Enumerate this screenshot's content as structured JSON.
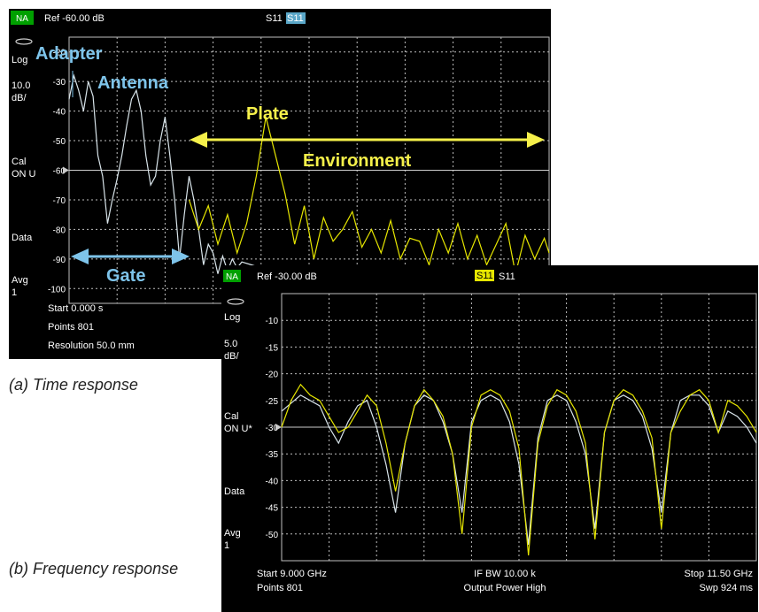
{
  "captions": {
    "a": "(a) Time response",
    "b": "(b) Frequency response"
  },
  "panel_a": {
    "na_badge": "NA",
    "ref_label": "Ref -60.00 dB",
    "trace_label_1": "S11",
    "trace_label_2": "S11",
    "side": {
      "scale_type": "Log",
      "scale_value": "10.0",
      "scale_unit": "dB/",
      "cal_1": "Cal",
      "cal_2": "ON U",
      "data": "Data",
      "avg_1": "Avg",
      "avg_2": "1"
    },
    "footer": {
      "start": "Start 0.000 s",
      "points": "Points 801",
      "resolution": "Resolution 50.0 mm"
    },
    "annotations": {
      "adapter": "Adapter",
      "antenna": "Antenna",
      "plate": "Plate",
      "environment": "Environment",
      "gate": "Gate"
    }
  },
  "panel_b": {
    "na_badge": "NA",
    "ref_label": "Ref -30.00 dB",
    "trace_label_1": "S11",
    "trace_label_2": "S11",
    "side": {
      "scale_type": "Log",
      "scale_value": "5.0",
      "scale_unit": "dB/",
      "cal_1": "Cal",
      "cal_2": "ON U*",
      "data": "Data",
      "avg_1": "Avg",
      "avg_2": "1"
    },
    "footer": {
      "start": "Start 9.000 GHz",
      "points": "Points 801",
      "ifbw": "IF BW 10.00 k",
      "power": "Output Power High",
      "stop": "Stop 11.50 GHz",
      "swp": "Swp 924 ms"
    }
  },
  "colors": {
    "screen_bg": "#000000",
    "grid": "#bfbfbf",
    "trace_yellow": "#e6e600",
    "trace_white": "#d8e4ea",
    "annotation_blue": "#7ec4ea",
    "annotation_yellow": "#f5f04a",
    "na_badge_bg": "#00a000"
  },
  "chart_data": [
    {
      "type": "line",
      "x_range": [
        0,
        10
      ],
      "ylim": [
        -105,
        -15
      ],
      "y_ticks": [
        -20,
        -30,
        -40,
        -50,
        -60,
        -70,
        -80,
        -90,
        -100
      ],
      "ref_level": -60,
      "series": [
        {
          "color": "white",
          "x": [
            0,
            0.1,
            0.2,
            0.3,
            0.4,
            0.5,
            0.6,
            0.7,
            0.8,
            0.9,
            1.0,
            1.1,
            1.2,
            1.3,
            1.4,
            1.5,
            1.6,
            1.7,
            1.8,
            1.9,
            2.0,
            2.1,
            2.2,
            2.3,
            2.4,
            2.5,
            2.6,
            2.7,
            2.8,
            2.9,
            3.0,
            3.1,
            3.2,
            3.3,
            3.4,
            3.5,
            3.6,
            3.8,
            4.0,
            4.5,
            5.0,
            5.5,
            6.0,
            6.5,
            7.0,
            7.5,
            8.0,
            8.5,
            9.0,
            9.5,
            10.0
          ],
          "y": [
            -36,
            -28,
            -33,
            -40,
            -30,
            -35,
            -55,
            -62,
            -78,
            -70,
            -63,
            -55,
            -45,
            -36,
            -33,
            -40,
            -55,
            -65,
            -62,
            -50,
            -42,
            -55,
            -70,
            -90,
            -75,
            -62,
            -70,
            -80,
            -92,
            -85,
            -88,
            -95,
            -89,
            -94,
            -90,
            -93,
            -91,
            -92,
            -93,
            -94,
            -95,
            -96,
            -96,
            -97,
            -97,
            -98,
            -98,
            -98,
            -99,
            -99,
            -99
          ]
        },
        {
          "color": "yellow",
          "x": [
            2.5,
            2.7,
            2.9,
            3.1,
            3.3,
            3.5,
            3.7,
            3.9,
            4.1,
            4.3,
            4.5,
            4.7,
            4.9,
            5.1,
            5.3,
            5.5,
            5.7,
            5.9,
            6.1,
            6.3,
            6.5,
            6.7,
            6.9,
            7.1,
            7.3,
            7.5,
            7.7,
            7.9,
            8.1,
            8.3,
            8.5,
            8.7,
            8.9,
            9.1,
            9.3,
            9.5,
            9.7,
            9.9,
            10.0
          ],
          "y": [
            -70,
            -80,
            -72,
            -85,
            -75,
            -88,
            -78,
            -62,
            -42,
            -55,
            -68,
            -85,
            -72,
            -90,
            -76,
            -84,
            -80,
            -74,
            -86,
            -80,
            -88,
            -77,
            -90,
            -83,
            -84,
            -92,
            -80,
            -88,
            -78,
            -90,
            -82,
            -92,
            -85,
            -78,
            -95,
            -82,
            -90,
            -83,
            -88
          ]
        }
      ]
    },
    {
      "type": "line",
      "x_range": [
        9.0,
        11.5
      ],
      "ylim": [
        -55,
        -5
      ],
      "y_ticks": [
        -10,
        -15,
        -20,
        -25,
        -30,
        -35,
        -40,
        -45,
        -50
      ],
      "ref_level": -30,
      "series": [
        {
          "color": "white",
          "x": [
            9.0,
            9.1,
            9.2,
            9.25,
            9.3,
            9.35,
            9.4,
            9.45,
            9.5,
            9.55,
            9.6,
            9.65,
            9.7,
            9.75,
            9.8,
            9.85,
            9.9,
            9.95,
            10.0,
            10.05,
            10.1,
            10.15,
            10.2,
            10.25,
            10.3,
            10.35,
            10.4,
            10.45,
            10.5,
            10.55,
            10.6,
            10.65,
            10.7,
            10.75,
            10.8,
            10.85,
            10.9,
            10.95,
            11.0,
            11.05,
            11.1,
            11.15,
            11.2,
            11.25,
            11.3,
            11.35,
            11.4,
            11.45,
            11.5
          ],
          "y": [
            -27,
            -24,
            -26,
            -30,
            -33,
            -29,
            -26,
            -25,
            -30,
            -37,
            -46,
            -33,
            -26,
            -24,
            -25,
            -29,
            -35,
            -46,
            -29,
            -25,
            -24,
            -25,
            -29,
            -37,
            -52,
            -32,
            -25,
            -24,
            -25,
            -29,
            -35,
            -49,
            -31,
            -25,
            -24,
            -25,
            -28,
            -34,
            -46,
            -31,
            -25,
            -24,
            -24,
            -26,
            -31,
            -27,
            -28,
            -30,
            -33
          ]
        },
        {
          "color": "yellow",
          "x": [
            9.0,
            9.05,
            9.1,
            9.15,
            9.2,
            9.25,
            9.3,
            9.35,
            9.4,
            9.45,
            9.5,
            9.55,
            9.6,
            9.65,
            9.7,
            9.75,
            9.8,
            9.85,
            9.9,
            9.95,
            10.0,
            10.05,
            10.1,
            10.15,
            10.2,
            10.25,
            10.3,
            10.35,
            10.4,
            10.45,
            10.5,
            10.55,
            10.6,
            10.65,
            10.7,
            10.75,
            10.8,
            10.85,
            10.9,
            10.95,
            11.0,
            11.05,
            11.1,
            11.15,
            11.2,
            11.25,
            11.3,
            11.35,
            11.4,
            11.45,
            11.5
          ],
          "y": [
            -30,
            -25,
            -22,
            -24,
            -25,
            -28,
            -31,
            -30,
            -27,
            -24,
            -26,
            -33,
            -42,
            -33,
            -26,
            -23,
            -25,
            -28,
            -35,
            -50,
            -30,
            -24,
            -23,
            -24,
            -27,
            -34,
            -54,
            -33,
            -26,
            -23,
            -24,
            -27,
            -33,
            -51,
            -31,
            -25,
            -23,
            -24,
            -27,
            -32,
            -49,
            -31,
            -27,
            -24,
            -23,
            -25,
            -31,
            -25,
            -26,
            -28,
            -31
          ]
        }
      ]
    }
  ]
}
